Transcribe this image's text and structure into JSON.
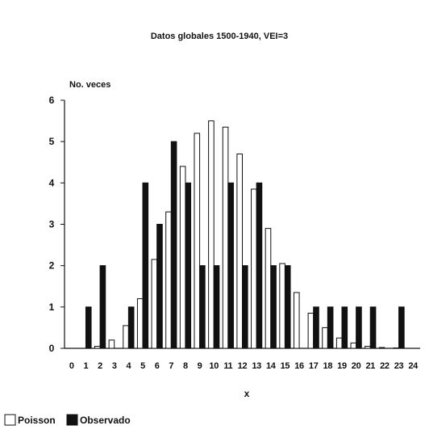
{
  "chart_data": {
    "type": "bar",
    "title": "Datos globales 1500-1940, VEI=3",
    "ylabel": "No. veces",
    "xlabel": "x",
    "ylim": [
      0,
      6
    ],
    "yticks": [
      "0",
      "1",
      "2",
      "3",
      "4",
      "5",
      "6"
    ],
    "categories": [
      "0",
      "1",
      "2",
      "3",
      "4",
      "5",
      "6",
      "7",
      "8",
      "9",
      "10",
      "11",
      "12",
      "13",
      "14",
      "15",
      "16",
      "17",
      "18",
      "19",
      "20",
      "21",
      "22",
      "23",
      "24"
    ],
    "series": [
      {
        "name": "Poisson",
        "color": "#ffffff",
        "values": [
          0.0,
          0.0,
          0.05,
          0.2,
          0.55,
          1.2,
          2.15,
          3.3,
          4.4,
          5.2,
          5.5,
          5.35,
          4.7,
          3.85,
          2.9,
          2.05,
          1.35,
          0.85,
          0.5,
          0.25,
          0.13,
          0.05,
          0.02,
          0.01,
          0.0
        ]
      },
      {
        "name": "Observado",
        "color": "#111111",
        "values": [
          0,
          1,
          2,
          0,
          1,
          4,
          3,
          5,
          4,
          2,
          2,
          4,
          2,
          4,
          2,
          2,
          0,
          1,
          1,
          1,
          1,
          1,
          0,
          1,
          0
        ]
      }
    ],
    "legend": "bottom-left",
    "grid": false
  }
}
